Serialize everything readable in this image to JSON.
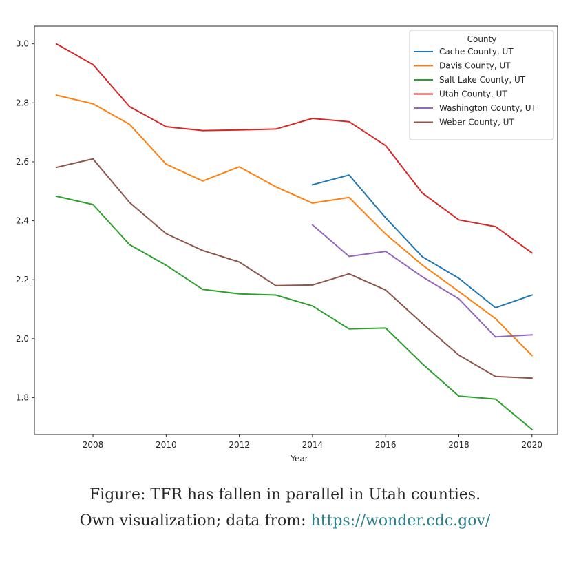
{
  "chart_data": {
    "type": "line",
    "title": "",
    "xlabel": "Year",
    "ylabel": "",
    "xlim": [
      2006.4,
      2020.7
    ],
    "ylim": [
      1.675,
      3.06
    ],
    "xticks": [
      2008,
      2010,
      2012,
      2014,
      2016,
      2018,
      2020
    ],
    "yticks": [
      1.8,
      2.0,
      2.2,
      2.4,
      2.6,
      2.8,
      3.0
    ],
    "ytick_labels": [
      "1.8",
      "2.0",
      "2.2",
      "2.4",
      "2.6",
      "2.8",
      "3.0"
    ],
    "legend_title": "County",
    "legend_position": "upper right",
    "series": [
      {
        "name": "Cache County, UT",
        "color": "#1f77b4",
        "x": [
          2014,
          2015,
          2016,
          2017,
          2018,
          2019,
          2020
        ],
        "values": [
          2.522,
          2.555,
          2.41,
          2.278,
          2.205,
          2.105,
          2.148
        ]
      },
      {
        "name": "Davis County, UT",
        "color": "#ff7f0e",
        "x": [
          2007,
          2008,
          2009,
          2010,
          2011,
          2012,
          2013,
          2014,
          2015,
          2016,
          2017,
          2018,
          2019,
          2020
        ],
        "values": [
          2.826,
          2.797,
          2.727,
          2.592,
          2.535,
          2.583,
          2.515,
          2.46,
          2.479,
          2.355,
          2.25,
          2.16,
          2.068,
          1.943
        ]
      },
      {
        "name": "Salt Lake County, UT",
        "color": "#2ca02c",
        "x": [
          2007,
          2008,
          2009,
          2010,
          2011,
          2012,
          2013,
          2014,
          2015,
          2016,
          2017,
          2018,
          2019,
          2020
        ],
        "values": [
          2.483,
          2.455,
          2.319,
          2.249,
          2.167,
          2.152,
          2.148,
          2.111,
          2.033,
          2.036,
          1.915,
          1.805,
          1.795,
          1.692
        ]
      },
      {
        "name": "Utah County, UT",
        "color": "#d62728",
        "x": [
          2007,
          2008,
          2009,
          2010,
          2011,
          2012,
          2013,
          2014,
          2015,
          2016,
          2017,
          2018,
          2019,
          2020
        ],
        "values": [
          3.0,
          2.93,
          2.787,
          2.719,
          2.706,
          2.708,
          2.711,
          2.747,
          2.736,
          2.655,
          2.494,
          2.403,
          2.38,
          2.291
        ]
      },
      {
        "name": "Washington County, UT",
        "color": "#9467bd",
        "x": [
          2014,
          2015,
          2016,
          2017,
          2018,
          2019,
          2020
        ],
        "values": [
          2.386,
          2.279,
          2.296,
          2.21,
          2.135,
          2.006,
          2.013
        ]
      },
      {
        "name": "Weber County, UT",
        "color": "#8c564b",
        "x": [
          2007,
          2008,
          2009,
          2010,
          2011,
          2012,
          2013,
          2014,
          2015,
          2016,
          2017,
          2018,
          2019,
          2020
        ],
        "values": [
          2.581,
          2.61,
          2.462,
          2.356,
          2.299,
          2.26,
          2.18,
          2.182,
          2.22,
          2.165,
          2.052,
          1.944,
          1.872,
          1.866
        ]
      }
    ]
  },
  "caption": {
    "line1": "Figure: TFR has fallen in parallel in Utah counties.",
    "line2_prefix": "Own visualization; data from: ",
    "link_text": "https://wonder.cdc.gov/"
  },
  "colors": {
    "axis": "#262626",
    "link": "#2a7f8a"
  }
}
